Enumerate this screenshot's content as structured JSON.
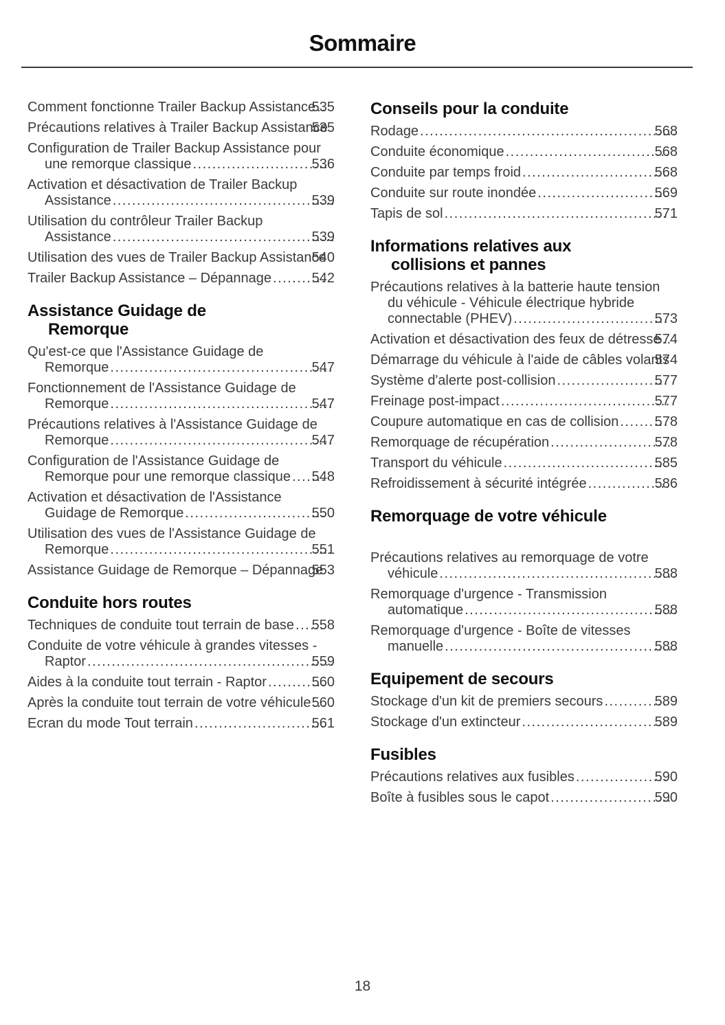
{
  "title": "Sommaire",
  "footer_page_number": "18",
  "left_column": {
    "intro_entries": [
      {
        "label": "Comment fonctionne Trailer Backup Assistance",
        "page": "535"
      },
      {
        "label": "Précautions relatives à Trailer Backup Assistance",
        "page": "535"
      },
      {
        "label": "Configuration de Trailer Backup Assistance pour une remorque classique",
        "page": "536"
      },
      {
        "label": "Activation et désactivation de Trailer Backup Assistance",
        "page": "539"
      },
      {
        "label": "Utilisation du contrôleur Trailer Backup Assistance",
        "page": "539"
      },
      {
        "label": "Utilisation des vues de Trailer Backup Assistance",
        "page": "540"
      },
      {
        "label": "Trailer Backup Assistance – Dépannage",
        "page": "542"
      }
    ],
    "sections": [
      {
        "heading": "Assistance Guidage de\nRemorque",
        "entries": [
          {
            "label": "Qu'est-ce que l'Assistance Guidage de Remorque",
            "page": "547"
          },
          {
            "label": "Fonctionnement de l'Assistance Guidage de Remorque",
            "page": "547"
          },
          {
            "label": "Précautions relatives à l'Assistance Guidage de Remorque",
            "page": "547"
          },
          {
            "label": "Configuration de l'Assistance Guidage de Remorque pour une remorque classique",
            "page": "548"
          },
          {
            "label": "Activation et désactivation de l'Assistance Guidage de Remorque",
            "page": "550"
          },
          {
            "label": "Utilisation des vues de l'Assistance Guidage de Remorque",
            "page": "551"
          },
          {
            "label": "Assistance Guidage de Remorque – Dépannage",
            "page": "553"
          }
        ]
      },
      {
        "heading": "Conduite hors routes",
        "entries": [
          {
            "label": "Techniques de conduite tout terrain de base",
            "page": "558"
          },
          {
            "label": "Conduite de votre véhicule à grandes vitesses - Raptor",
            "page": "559"
          },
          {
            "label": "Aides à la conduite tout terrain - Raptor",
            "page": "560"
          },
          {
            "label": "Après la conduite tout terrain de votre véhicule",
            "page": "560"
          },
          {
            "label": "Ecran du mode Tout terrain",
            "page": "561"
          }
        ]
      }
    ]
  },
  "right_column": {
    "sections": [
      {
        "heading": "Conseils pour la conduite",
        "entries": [
          {
            "label": "Rodage",
            "page": "568"
          },
          {
            "label": "Conduite économique",
            "page": "568"
          },
          {
            "label": "Conduite par temps froid",
            "page": "568"
          },
          {
            "label": "Conduite sur route inondée",
            "page": "569"
          },
          {
            "label": "Tapis de sol",
            "page": "571"
          }
        ]
      },
      {
        "heading": "Informations relatives aux\ncollisions et pannes",
        "entries": [
          {
            "label": "Précautions relatives à la batterie haute tension du véhicule - Véhicule électrique hybride connectable (PHEV)",
            "page": "573"
          },
          {
            "label": "Activation et désactivation des feux de détresse",
            "page": "574"
          },
          {
            "label": "Démarrage du véhicule à l'aide de câbles volants",
            "page": "574"
          },
          {
            "label": "Système d'alerte post-collision",
            "page": "577"
          },
          {
            "label": "Freinage post-impact",
            "page": "577"
          },
          {
            "label": "Coupure automatique en cas de collision",
            "page": "578"
          },
          {
            "label": "Remorquage de récupération",
            "page": "578"
          },
          {
            "label": "Transport du véhicule",
            "page": "585"
          },
          {
            "label": "Refroidissement à sécurité intégrée",
            "page": "586"
          }
        ]
      },
      {
        "heading": "Remorquage de votre véhicule",
        "entries": [
          {
            "label": "Précautions relatives au remorquage de votre véhicule",
            "page": "588"
          },
          {
            "label": "Remorquage d'urgence - Transmission automatique",
            "page": "588"
          },
          {
            "label": "Remorquage d'urgence - Boîte de vitesses manuelle",
            "page": "588"
          }
        ]
      },
      {
        "heading": "Equipement de secours",
        "entries": [
          {
            "label": "Stockage d'un kit de premiers secours",
            "page": "589"
          },
          {
            "label": "Stockage d'un extincteur",
            "page": "589"
          }
        ]
      },
      {
        "heading": "Fusibles",
        "entries": [
          {
            "label": "Précautions relatives aux fusibles",
            "page": "590"
          },
          {
            "label": "Boîte à fusibles sous le capot",
            "page": "590"
          }
        ]
      }
    ]
  }
}
